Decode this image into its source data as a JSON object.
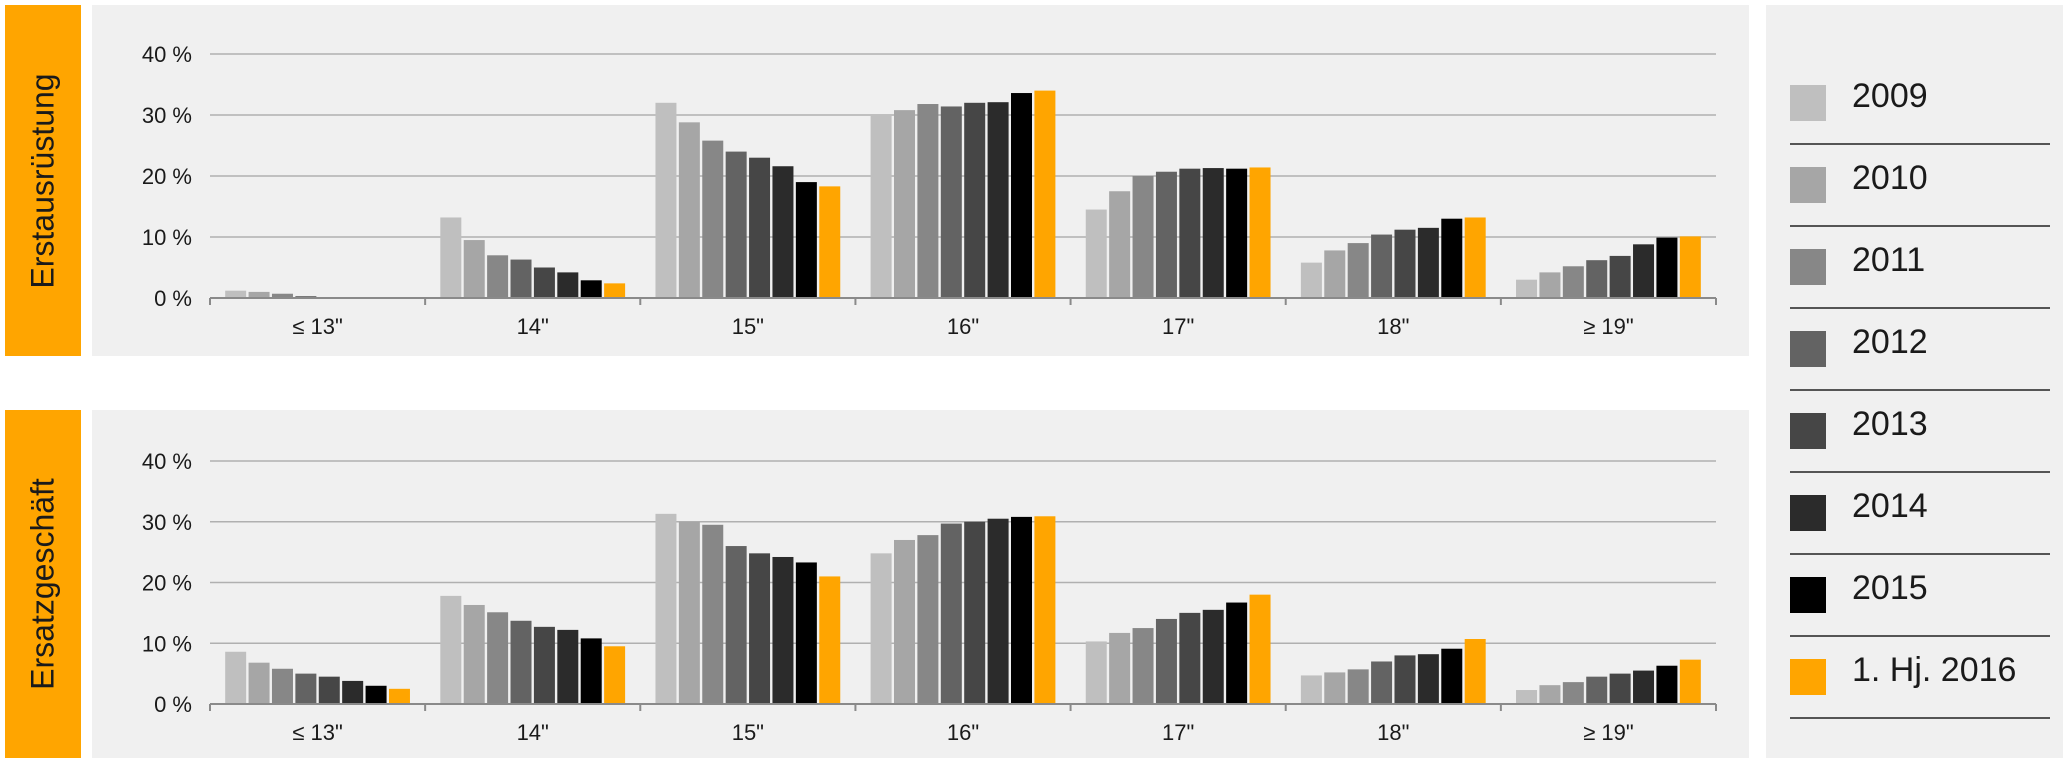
{
  "colors": {
    "series": [
      "#bfbfbf",
      "#a6a6a6",
      "#878787",
      "#636363",
      "#464646",
      "#2b2b2b",
      "#000000",
      "#ffa500"
    ],
    "gridline": "#b0b0b0",
    "axis": "#8a8a8a",
    "panel_bg": "#f0f0f0",
    "accent": "#ffa500"
  },
  "legend": {
    "items": [
      {
        "label": "2009"
      },
      {
        "label": "2010"
      },
      {
        "label": "2011"
      },
      {
        "label": "2012"
      },
      {
        "label": "2013"
      },
      {
        "label": "2014"
      },
      {
        "label": "2015"
      },
      {
        "label": "1. Hj. 2016"
      }
    ]
  },
  "chart_data": [
    {
      "type": "bar",
      "title": "Erstausrüstung",
      "categories": [
        "≤ 13\"",
        "14\"",
        "15\"",
        "16\"",
        "17\"",
        "18\"",
        "≥ 19\""
      ],
      "ylim": [
        0,
        40
      ],
      "yticks": [
        "0 %",
        "10 %",
        "20 %",
        "30 %",
        "40 %"
      ],
      "grid": true,
      "legend_position": "right",
      "series": [
        {
          "name": "2009",
          "values": [
            1.2,
            13.2,
            32.0,
            30.0,
            14.5,
            5.8,
            3.0
          ]
        },
        {
          "name": "2010",
          "values": [
            1.0,
            9.5,
            28.8,
            30.8,
            17.5,
            7.8,
            4.2
          ]
        },
        {
          "name": "2011",
          "values": [
            0.7,
            7.0,
            25.8,
            31.8,
            20.0,
            9.0,
            5.2
          ]
        },
        {
          "name": "2012",
          "values": [
            0.3,
            6.3,
            24.0,
            31.4,
            20.7,
            10.4,
            6.2
          ]
        },
        {
          "name": "2013",
          "values": [
            0.1,
            5.0,
            23.0,
            32.0,
            21.2,
            11.2,
            6.9
          ]
        },
        {
          "name": "2014",
          "values": [
            0.0,
            4.2,
            21.6,
            32.1,
            21.3,
            11.5,
            8.8
          ]
        },
        {
          "name": "2015",
          "values": [
            0.0,
            2.9,
            19.0,
            33.6,
            21.2,
            13.0,
            9.9
          ]
        },
        {
          "name": "1. Hj. 2016",
          "values": [
            0.0,
            2.4,
            18.3,
            34.0,
            21.4,
            13.2,
            10.1
          ]
        }
      ]
    },
    {
      "type": "bar",
      "title": "Ersatzgeschäft",
      "categories": [
        "≤ 13\"",
        "14\"",
        "15\"",
        "16\"",
        "17\"",
        "18\"",
        "≥ 19\""
      ],
      "ylim": [
        0,
        40
      ],
      "yticks": [
        "0 %",
        "10 %",
        "20 %",
        "30 %",
        "40 %"
      ],
      "grid": true,
      "legend_position": "right",
      "series": [
        {
          "name": "2009",
          "values": [
            8.6,
            17.8,
            31.3,
            24.8,
            10.3,
            4.7,
            2.3
          ]
        },
        {
          "name": "2010",
          "values": [
            6.8,
            16.3,
            30.0,
            27.0,
            11.7,
            5.2,
            3.1
          ]
        },
        {
          "name": "2011",
          "values": [
            5.8,
            15.1,
            29.5,
            27.8,
            12.5,
            5.7,
            3.6
          ]
        },
        {
          "name": "2012",
          "values": [
            5.0,
            13.7,
            26.0,
            29.7,
            14.0,
            7.0,
            4.5
          ]
        },
        {
          "name": "2013",
          "values": [
            4.5,
            12.7,
            24.8,
            30.0,
            15.0,
            8.0,
            5.0
          ]
        },
        {
          "name": "2014",
          "values": [
            3.8,
            12.2,
            24.2,
            30.5,
            15.5,
            8.2,
            5.5
          ]
        },
        {
          "name": "2015",
          "values": [
            3.0,
            10.8,
            23.3,
            30.8,
            16.7,
            9.1,
            6.3
          ]
        },
        {
          "name": "1. Hj. 2016",
          "values": [
            2.5,
            9.5,
            21.0,
            30.9,
            18.0,
            10.7,
            7.3
          ]
        }
      ]
    }
  ]
}
